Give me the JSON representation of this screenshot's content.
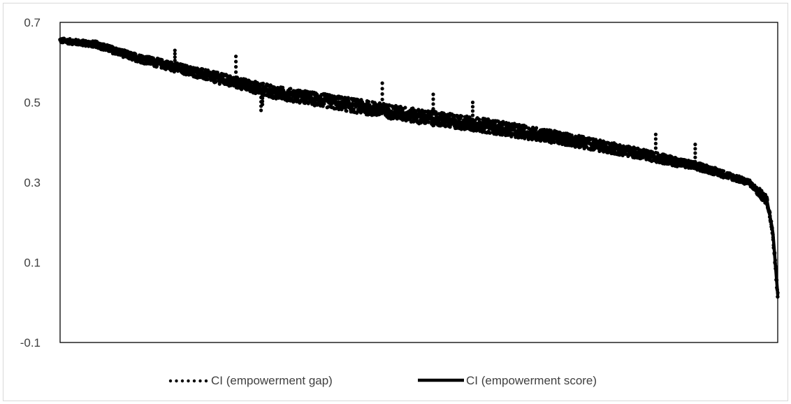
{
  "chart_data": {
    "type": "line",
    "title": "",
    "xlabel": "",
    "ylabel": "",
    "ylim": [
      -0.1,
      0.7
    ],
    "yticks": [
      {
        "value": 0.7,
        "label": "0.7"
      },
      {
        "value": 0.5,
        "label": "0.5"
      },
      {
        "value": 0.3,
        "label": "0.3"
      },
      {
        "value": 0.1,
        "label": "0.1"
      },
      {
        "value": -0.1,
        "label": "-0.1"
      }
    ],
    "x_tick_labels": "none",
    "grid": false,
    "legend_position": "bottom",
    "x_points": 3000,
    "series": [
      {
        "name": "CI (empowerment gap)",
        "style": "dotted-markers",
        "color": "#000000",
        "profile": [
          {
            "x": 0.0,
            "y": 0.655
          },
          {
            "x": 0.05,
            "y": 0.645
          },
          {
            "x": 0.1,
            "y": 0.615
          },
          {
            "x": 0.2,
            "y": 0.57
          },
          {
            "x": 0.3,
            "y": 0.525
          },
          {
            "x": 0.4,
            "y": 0.495
          },
          {
            "x": 0.5,
            "y": 0.465
          },
          {
            "x": 0.6,
            "y": 0.44
          },
          {
            "x": 0.7,
            "y": 0.41
          },
          {
            "x": 0.8,
            "y": 0.375
          },
          {
            "x": 0.9,
            "y": 0.335
          },
          {
            "x": 0.96,
            "y": 0.3
          },
          {
            "x": 0.985,
            "y": 0.255
          },
          {
            "x": 0.993,
            "y": 0.18
          },
          {
            "x": 1.0,
            "y": 0.02
          }
        ],
        "outliers": [
          {
            "x": 0.245,
            "y": 0.615
          },
          {
            "x": 0.28,
            "y": 0.48
          },
          {
            "x": 0.282,
            "y": 0.495
          },
          {
            "x": 0.449,
            "y": 0.548
          },
          {
            "x": 0.52,
            "y": 0.52
          },
          {
            "x": 0.575,
            "y": 0.5
          },
          {
            "x": 0.83,
            "y": 0.42
          },
          {
            "x": 0.885,
            "y": 0.395
          },
          {
            "x": 0.16,
            "y": 0.63
          }
        ]
      },
      {
        "name": "CI (empowerment score)",
        "style": "solid",
        "color": "#000000",
        "profile": [
          {
            "x": 0.0,
            "y": 0.655
          },
          {
            "x": 0.05,
            "y": 0.645
          },
          {
            "x": 0.1,
            "y": 0.615
          },
          {
            "x": 0.2,
            "y": 0.57
          },
          {
            "x": 0.3,
            "y": 0.525
          },
          {
            "x": 0.4,
            "y": 0.495
          },
          {
            "x": 0.5,
            "y": 0.465
          },
          {
            "x": 0.6,
            "y": 0.44
          },
          {
            "x": 0.7,
            "y": 0.41
          },
          {
            "x": 0.8,
            "y": 0.375
          },
          {
            "x": 0.9,
            "y": 0.335
          },
          {
            "x": 0.96,
            "y": 0.3
          },
          {
            "x": 0.985,
            "y": 0.255
          },
          {
            "x": 0.993,
            "y": 0.18
          },
          {
            "x": 1.0,
            "y": 0.02
          }
        ]
      }
    ]
  },
  "legend": {
    "gap_label": "CI (empowerment gap)",
    "score_label": "CI (empowerment score)"
  }
}
